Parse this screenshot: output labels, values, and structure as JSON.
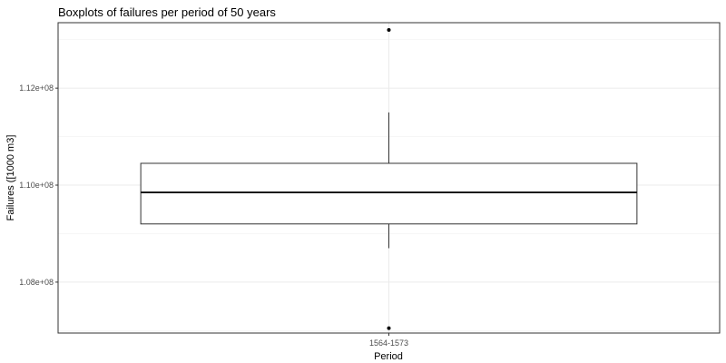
{
  "chart_data": {
    "type": "boxplot",
    "title": "Boxplots of failures per period of 50 years",
    "xlabel": "Period",
    "ylabel": "Failures ([1000 m3]",
    "categories": [
      "1564-1573"
    ],
    "ylim": [
      106950000,
      113350000
    ],
    "yticks": [
      108000000,
      110000000,
      112000000
    ],
    "ytick_labels": [
      "1.08e+08",
      "1.10e+08",
      "1.12e+08"
    ],
    "boxes": [
      {
        "category": "1564-1573",
        "min": 108700000,
        "q1": 109200000,
        "median": 109850000,
        "q3": 110450000,
        "max": 111500000,
        "outliers": [
          113200000,
          107050000
        ]
      }
    ],
    "grid": true,
    "legend": "none"
  }
}
